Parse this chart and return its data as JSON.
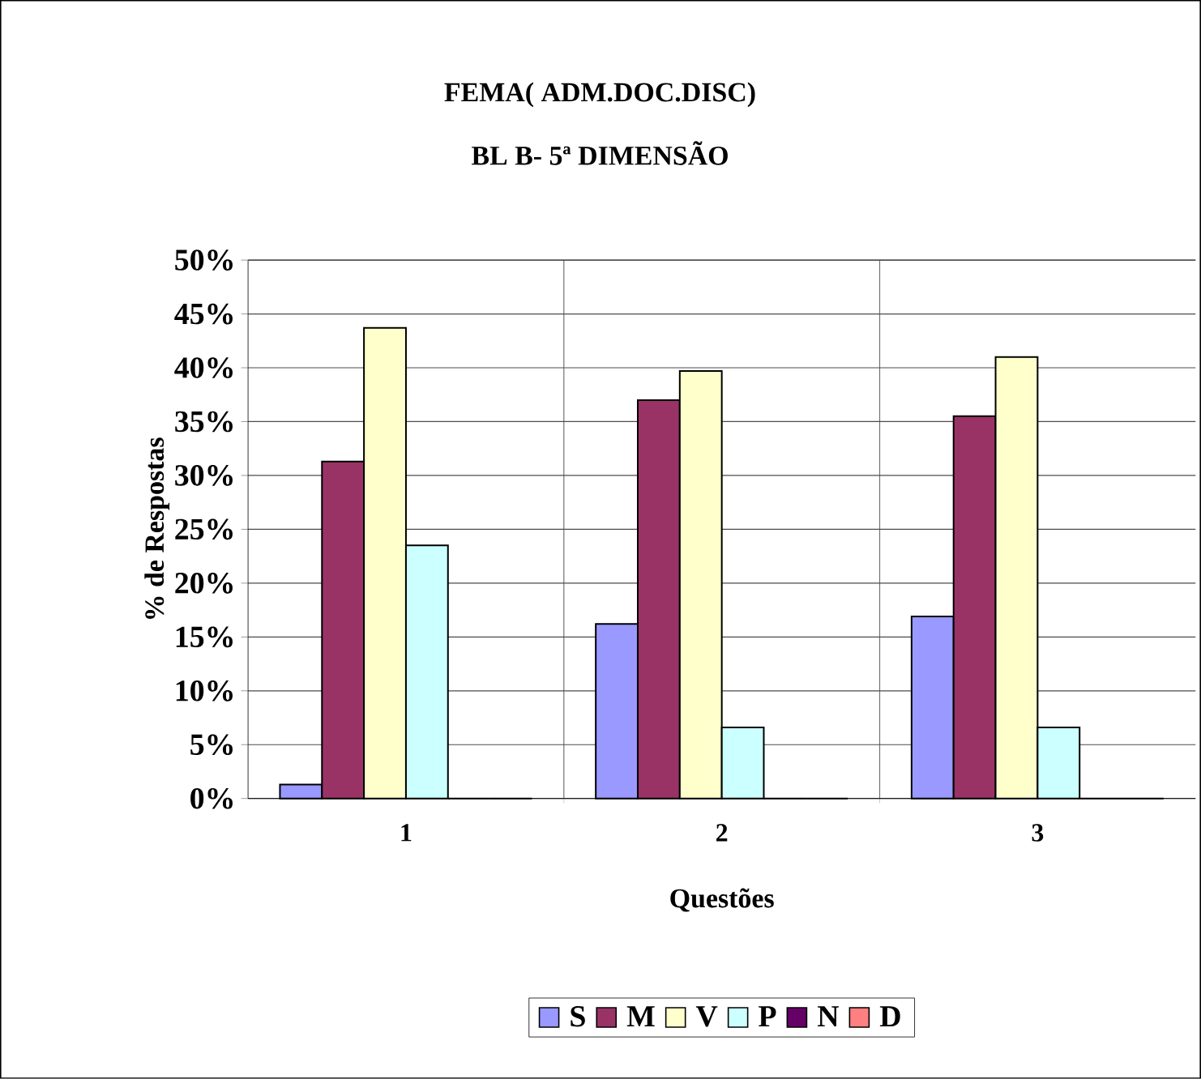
{
  "chart_data": {
    "type": "bar",
    "title": "FEMA( ADM.DOC.DISC)",
    "subtitle": "BL B- 5ª DIMENSÃO",
    "xlabel": "Questões",
    "ylabel": "% de Respostas",
    "categories": [
      "1",
      "2",
      "3"
    ],
    "series": [
      {
        "name": "S",
        "color": "#9999ff",
        "values": [
          1.3,
          16.2,
          16.9
        ]
      },
      {
        "name": "M",
        "color": "#993366",
        "values": [
          31.3,
          37.0,
          35.5
        ]
      },
      {
        "name": "V",
        "color": "#ffffcc",
        "values": [
          43.7,
          39.7,
          41.0
        ]
      },
      {
        "name": "P",
        "color": "#ccffff",
        "values": [
          23.5,
          6.6,
          6.6
        ]
      },
      {
        "name": "N",
        "color": "#660066",
        "values": [
          0,
          0,
          0
        ]
      },
      {
        "name": "D",
        "color": "#ff8080",
        "values": [
          0,
          0,
          0
        ]
      }
    ],
    "ylim": [
      0,
      50
    ],
    "yticks": [
      {
        "value": 0,
        "label": "0%"
      },
      {
        "value": 5,
        "label": "5%"
      },
      {
        "value": 10,
        "label": "10%"
      },
      {
        "value": 15,
        "label": "15%"
      },
      {
        "value": 20,
        "label": "20%"
      },
      {
        "value": 25,
        "label": "25%"
      },
      {
        "value": 30,
        "label": "30%"
      },
      {
        "value": 35,
        "label": "35%"
      },
      {
        "value": 40,
        "label": "40%"
      },
      {
        "value": 45,
        "label": "45%"
      },
      {
        "value": 50,
        "label": "50%"
      }
    ],
    "grid": true,
    "legend": "bottom"
  }
}
